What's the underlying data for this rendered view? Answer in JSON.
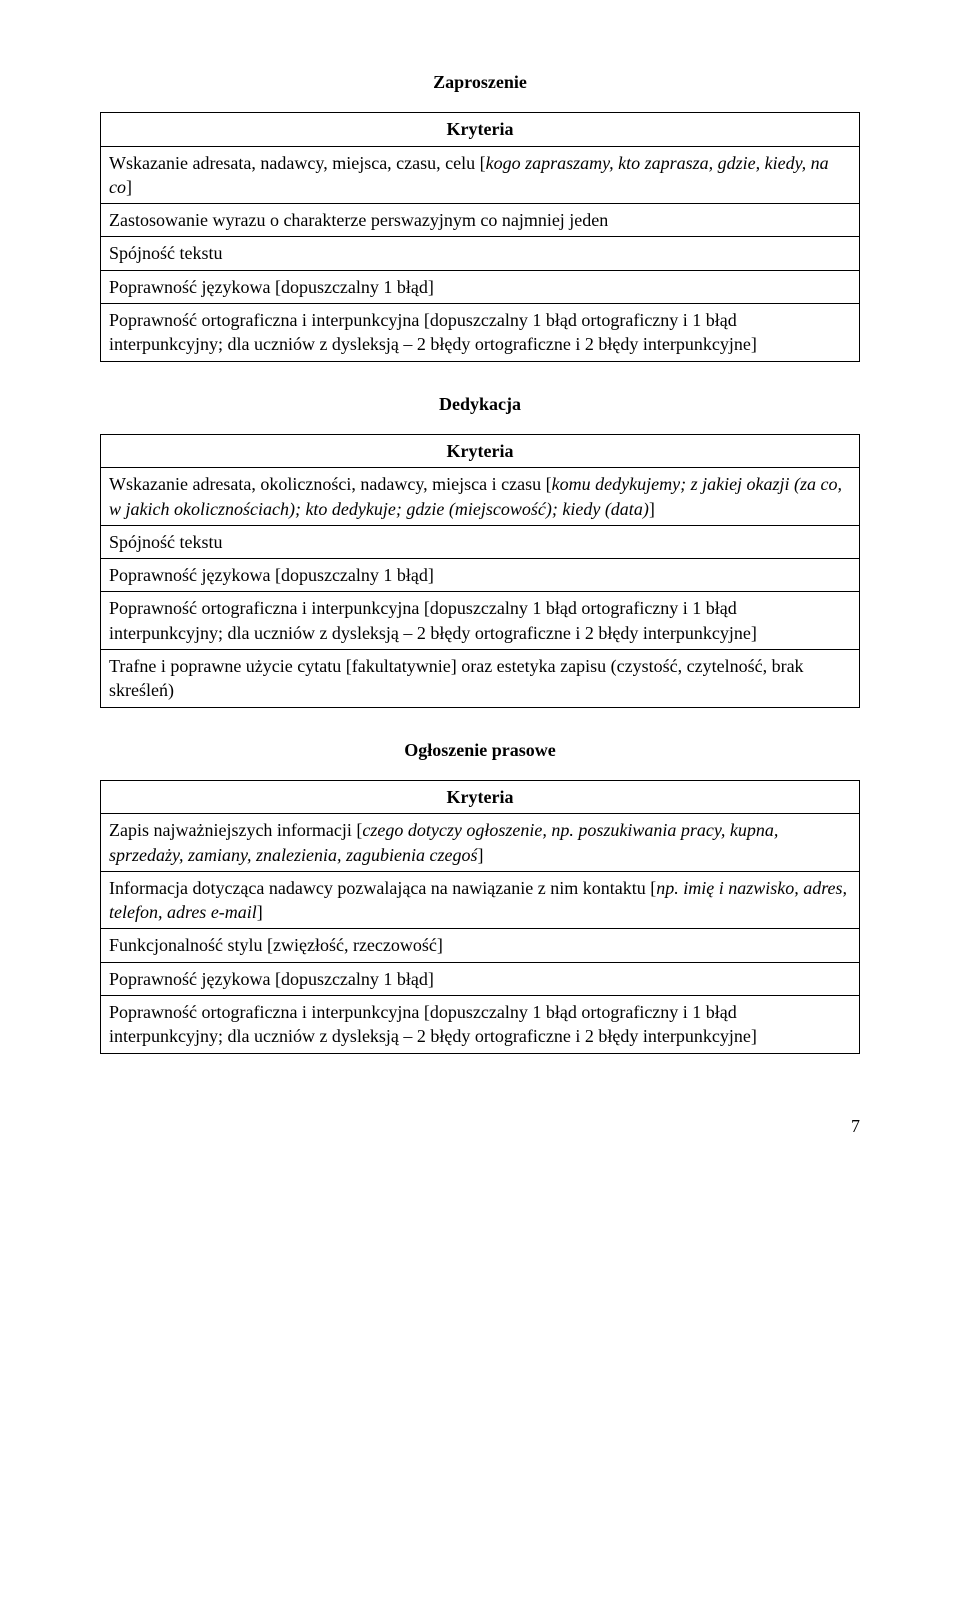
{
  "sections": {
    "zaproszenie": {
      "title": "Zaproszenie",
      "header": "Kryteria",
      "rows": [
        {
          "pre": "Wskazanie adresata, nadawcy, miejsca, czasu, celu [",
          "it": "kogo zapraszamy, kto zaprasza, gdzie, kiedy, na co",
          "post": "]"
        },
        {
          "pre": "Zastosowanie wyrazu o charakterze perswazyjnym co najmniej jeden"
        },
        {
          "pre": "Spójność tekstu"
        },
        {
          "pre": "Poprawność językowa [dopuszczalny 1 błąd]"
        },
        {
          "pre": "Poprawność ortograficzna i interpunkcyjna [dopuszczalny 1 błąd ortograficzny i 1 błąd interpunkcyjny; dla uczniów z dysleksją – 2 błędy ortograficzne i 2 błędy interpunkcyjne]"
        }
      ]
    },
    "dedykacja": {
      "title": "Dedykacja",
      "header": "Kryteria",
      "rows": [
        {
          "pre": "Wskazanie adresata, okoliczności, nadawcy, miejsca i czasu [",
          "it": "komu dedykujemy; z jakiej okazji (za co, w jakich okolicznościach); kto dedykuje; gdzie (miejscowość); kiedy (data)",
          "post": "]"
        },
        {
          "pre": "Spójność tekstu"
        },
        {
          "pre": "Poprawność językowa [dopuszczalny 1 błąd]"
        },
        {
          "pre": "Poprawność ortograficzna i interpunkcyjna [dopuszczalny 1 błąd ortograficzny i 1 błąd interpunkcyjny;\ndla uczniów z dysleksją – 2 błędy ortograficzne i 2 błędy interpunkcyjne]"
        },
        {
          "pre": "Trafne i poprawne użycie cytatu [fakultatywnie] oraz estetyka zapisu (czystość, czytelność, brak skreśleń)"
        }
      ]
    },
    "ogloszenie": {
      "title": "Ogłoszenie prasowe",
      "header": "Kryteria",
      "rows": [
        {
          "pre": "Zapis najważniejszych informacji [",
          "it": "czego dotyczy ogłoszenie, np. poszukiwania pracy, kupna, sprzedaży, zamiany, znalezienia, zagubienia czegoś",
          "post": "]"
        },
        {
          "pre": "Informacja dotycząca nadawcy pozwalająca na nawiązanie z nim kontaktu [",
          "it": "np. imię i nazwisko, adres, telefon, adres e-mail",
          "post": "]"
        },
        {
          "pre": "Funkcjonalność stylu [zwięzłość, rzeczowość]"
        },
        {
          "pre": "Poprawność językowa [dopuszczalny 1 błąd]"
        },
        {
          "pre": "Poprawność ortograficzna i interpunkcyjna [dopuszczalny 1 błąd ortograficzny i 1 błąd interpunkcyjny; dla uczniów z dysleksją – 2 błędy ortograficzne i 2 błędy interpunkcyjne]"
        }
      ]
    }
  },
  "page_number": "7"
}
